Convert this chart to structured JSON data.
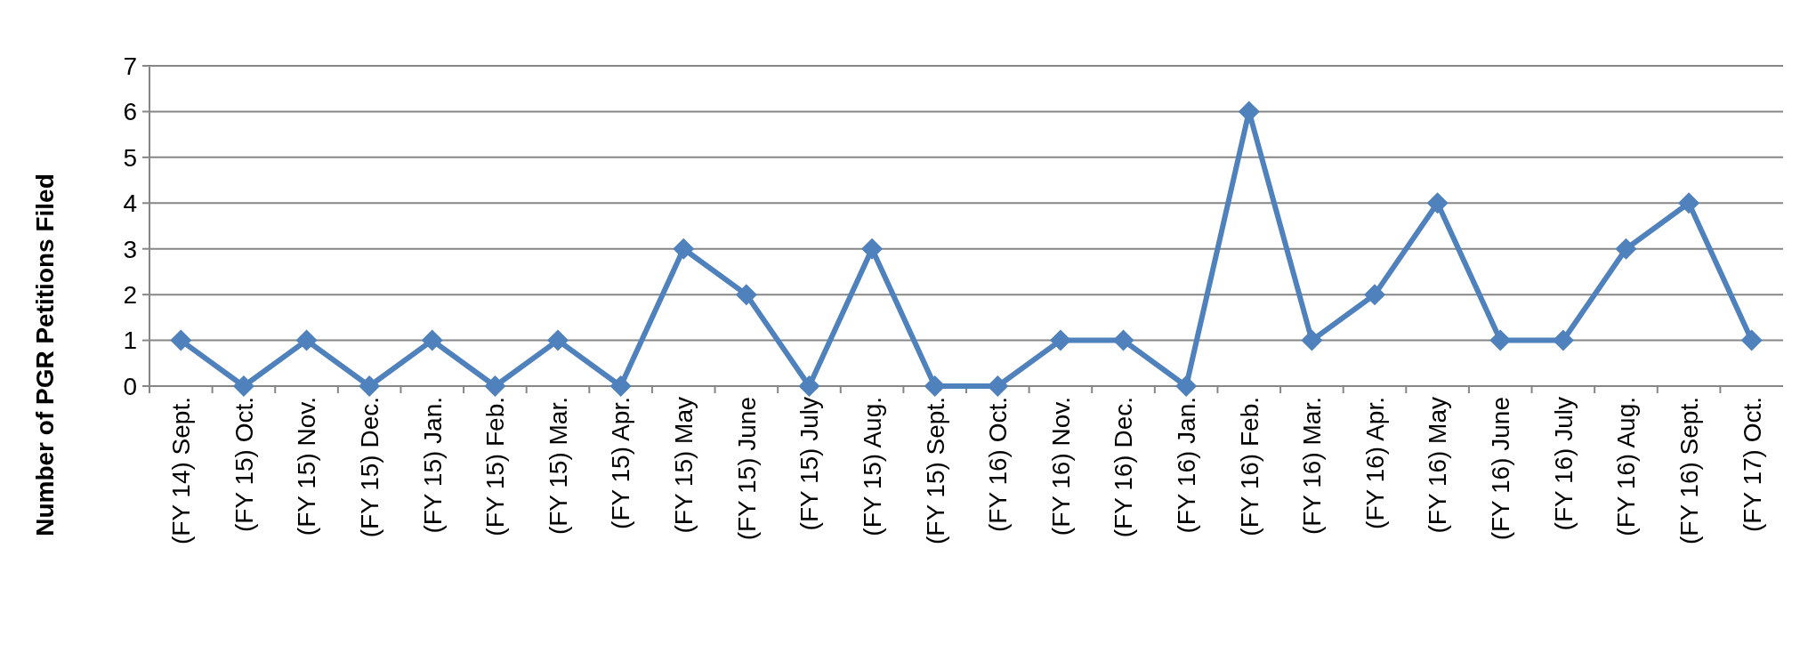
{
  "chart_data": {
    "type": "line",
    "ylabel": "Number of PGR Petitions Filed",
    "categories": [
      "(FY 14) Sept.",
      "(FY 15) Oct.",
      "(FY 15) Nov.",
      "(FY 15) Dec.",
      "(FY 15) Jan.",
      "(FY 15) Feb.",
      "(FY 15) Mar.",
      "(FY 15) Apr.",
      "(FY 15) May",
      "(FY 15) June",
      "(FY 15) July",
      "(FY 15) Aug.",
      "(FY 15) Sept.",
      "(FY 16) Oct.",
      "(FY 16) Nov.",
      "(FY 16) Dec.",
      "(FY 16) Jan.",
      "(FY 16) Feb.",
      "(FY 16) Mar.",
      "(FY 16) Apr.",
      "(FY 16) May",
      "(FY 16) June",
      "(FY 16) July",
      "(FY 16) Aug.",
      "(FY 16) Sept.",
      "(FY 17) Oct."
    ],
    "series": [
      {
        "color": "#4f81bd",
        "values": [
          1,
          0,
          1,
          0,
          1,
          0,
          1,
          0,
          3,
          2,
          0,
          3,
          0,
          0,
          1,
          1,
          0,
          6,
          1,
          2,
          4,
          1,
          1,
          3,
          4,
          1
        ]
      }
    ],
    "ylim": [
      0,
      7
    ],
    "yticks": [
      0,
      1,
      2,
      3,
      4,
      5,
      6,
      7
    ],
    "grid": "y",
    "marker": "diamond",
    "line_style": "solid"
  }
}
